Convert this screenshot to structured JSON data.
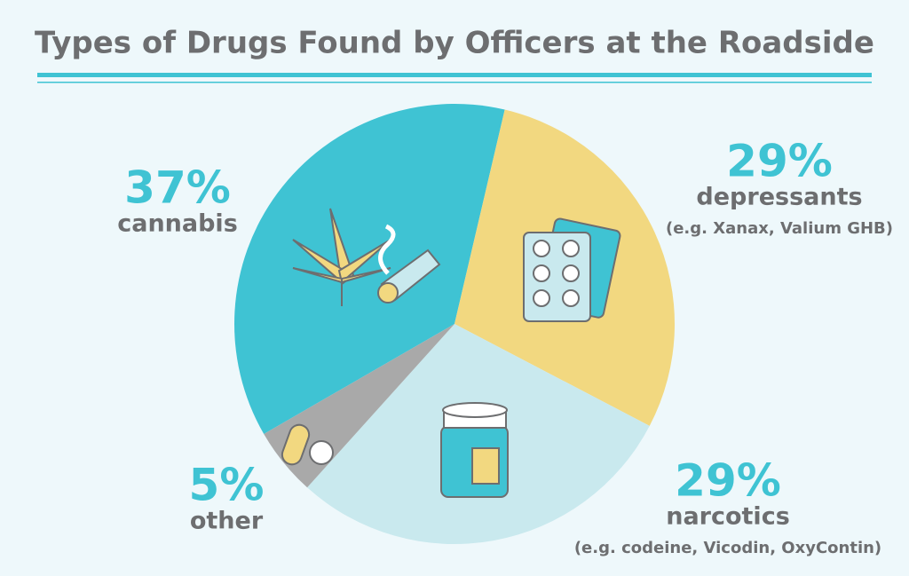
{
  "chart_data": {
    "type": "pie",
    "title": "Types of Drugs Found by Officers at the Roadside",
    "categories": [
      "cannabis",
      "depressants",
      "narcotics",
      "other"
    ],
    "values": [
      37,
      29,
      29,
      5
    ],
    "value_labels": [
      "37%",
      "29%",
      "29%",
      "5%"
    ],
    "examples": [
      null,
      "(e.g. Xanax, Valium GHB)",
      "(e.g. codeine, Vicodin, OxyContin)",
      null
    ],
    "colors": [
      "#3fc3d3",
      "#f2d880",
      "#c9e9ee",
      "#a9a9a9"
    ]
  }
}
